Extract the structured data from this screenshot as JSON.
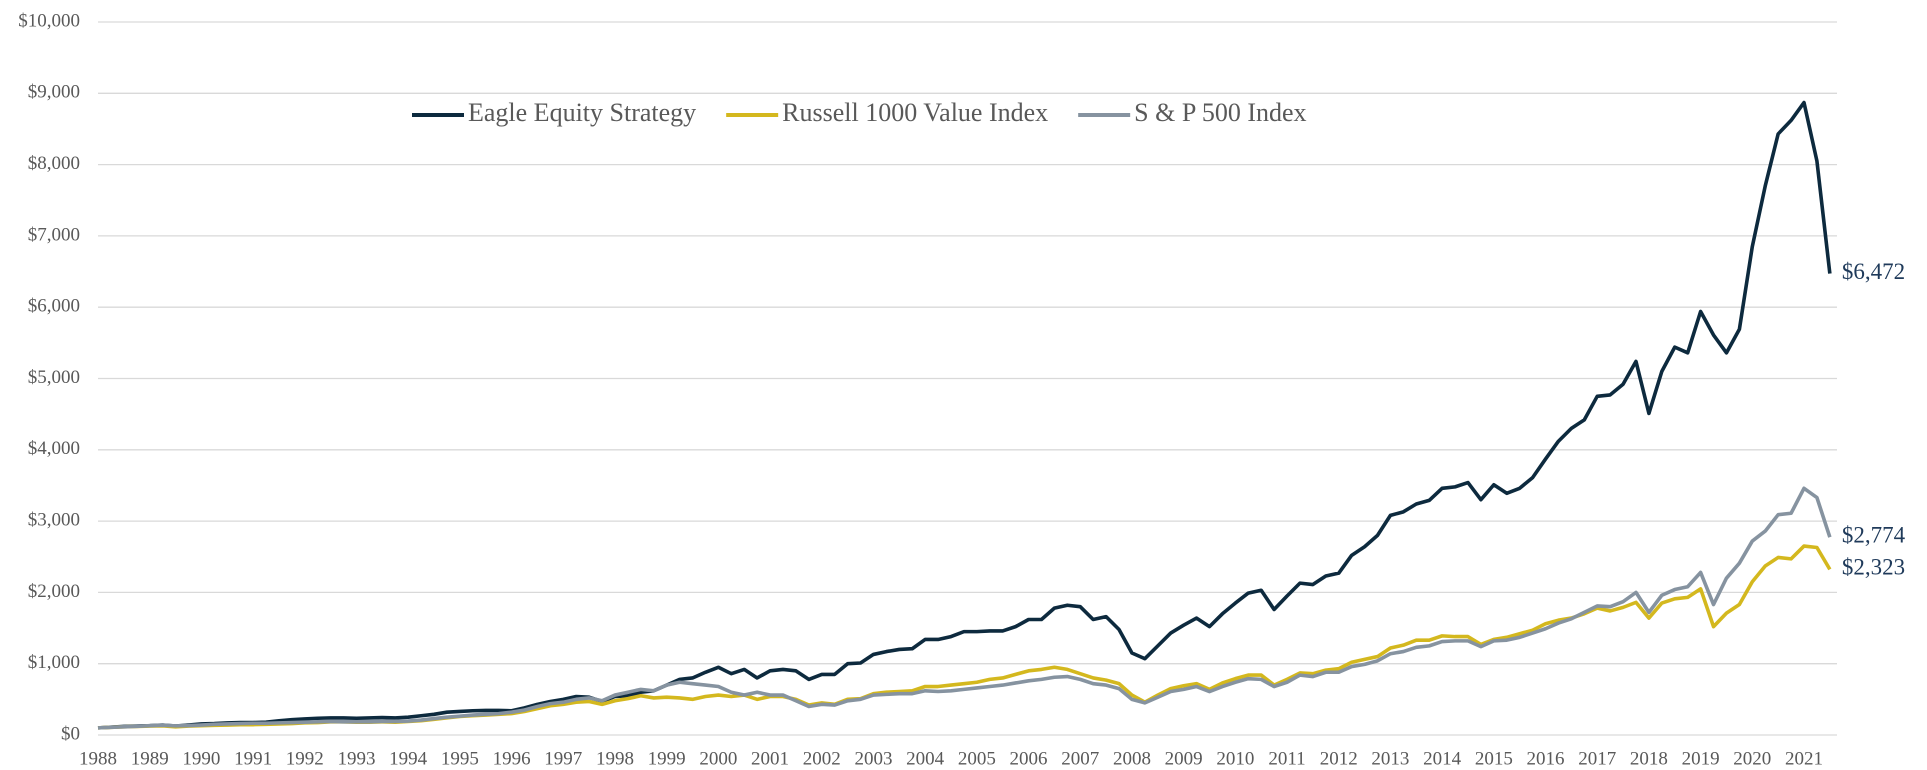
{
  "chart_data": {
    "type": "line",
    "categories": [
      "1988",
      null,
      null,
      null,
      "1989",
      null,
      null,
      null,
      "1990",
      null,
      null,
      null,
      "1991",
      null,
      null,
      null,
      "1992",
      null,
      null,
      null,
      "1993",
      null,
      null,
      null,
      "1994",
      null,
      null,
      null,
      "1995",
      null,
      null,
      null,
      "1996",
      null,
      null,
      null,
      "1997",
      null,
      null,
      null,
      "1998",
      null,
      null,
      null,
      "1999",
      null,
      null,
      null,
      "2000",
      null,
      null,
      null,
      "2001",
      null,
      null,
      null,
      "2002",
      null,
      null,
      null,
      "2003",
      null,
      null,
      null,
      "2004",
      null,
      null,
      null,
      "2005",
      null,
      null,
      null,
      "2006",
      null,
      null,
      null,
      "2007",
      null,
      null,
      null,
      "2008",
      null,
      null,
      null,
      "2009",
      null,
      null,
      null,
      "2010",
      null,
      null,
      null,
      "2011",
      null,
      null,
      null,
      "2012",
      null,
      null,
      null,
      "2013",
      null,
      null,
      null,
      "2014",
      null,
      null,
      null,
      "2015",
      null,
      null,
      null,
      "2016",
      null,
      null,
      null,
      "2017",
      null,
      null,
      null,
      "2018",
      null,
      null,
      null,
      "2019",
      null,
      null,
      null,
      "2020",
      null,
      null,
      null,
      "2021",
      null,
      null
    ],
    "series": [
      {
        "name": "Eagle Equity Strategy",
        "color": "#0d2a3e",
        "values": [
          100,
          110,
          120,
          125,
          130,
          140,
          125,
          140,
          155,
          160,
          170,
          175,
          175,
          180,
          200,
          215,
          225,
          235,
          240,
          240,
          235,
          240,
          245,
          240,
          250,
          270,
          290,
          320,
          330,
          340,
          345,
          345,
          340,
          380,
          430,
          470,
          500,
          540,
          530,
          470,
          540,
          550,
          600,
          620,
          700,
          780,
          800,
          880,
          950,
          860,
          920,
          800,
          900,
          920,
          900,
          780,
          850,
          850,
          1000,
          1010,
          1130,
          1170,
          1200,
          1210,
          1340,
          1340,
          1380,
          1450,
          1450,
          1460,
          1460,
          1520,
          1620,
          1620,
          1780,
          1820,
          1800,
          1620,
          1660,
          1480,
          1150,
          1070,
          1250,
          1430,
          1540,
          1640,
          1520,
          1700,
          1850,
          1990,
          2030,
          1760,
          1950,
          2130,
          2110,
          2230,
          2270,
          2520,
          2640,
          2800,
          3080,
          3130,
          3240,
          3290,
          3460,
          3480,
          3540,
          3300,
          3510,
          3390,
          3460,
          3610,
          3870,
          4120,
          4300,
          4420,
          4750,
          4770,
          4920,
          5240,
          4510,
          5100,
          5440,
          5360,
          5940,
          5610,
          5360,
          5690,
          6850,
          7700,
          8430,
          8620,
          8870,
          8050,
          6472
        ],
        "value_labels": [
          null,
          null,
          null,
          null,
          null,
          null,
          null,
          null,
          null,
          null,
          null,
          null,
          null,
          null,
          null,
          null,
          null,
          null,
          null,
          null,
          null,
          null,
          null,
          null,
          null,
          null,
          null,
          null,
          null,
          null,
          null,
          null,
          null,
          null,
          null,
          null,
          null,
          null,
          null,
          null,
          null,
          null,
          null,
          null,
          null,
          null,
          null,
          null,
          null,
          null,
          null,
          null,
          null,
          null,
          null,
          null,
          null,
          null,
          null,
          null,
          null,
          null,
          null,
          null,
          null,
          null,
          null,
          null,
          null,
          null,
          null,
          null,
          null,
          null,
          null,
          null,
          null,
          null,
          null,
          null,
          null,
          null,
          null,
          null,
          null,
          null,
          null,
          null,
          null,
          null,
          null,
          null,
          null,
          null,
          null,
          null,
          null,
          null,
          null,
          null,
          null,
          null,
          null,
          null,
          null,
          null,
          null,
          null,
          null,
          null,
          null,
          null,
          null,
          null,
          null,
          null,
          null,
          null,
          null,
          null,
          null,
          null,
          null,
          null,
          null,
          null,
          null,
          null,
          null,
          null,
          null,
          null,
          null,
          null,
          "$6,472"
        ]
      },
      {
        "name": "Russell 1000 Value Index",
        "color": "#d4b81e",
        "values": [
          100,
          108,
          115,
          120,
          125,
          128,
          115,
          125,
          130,
          135,
          140,
          145,
          145,
          150,
          155,
          160,
          170,
          175,
          185,
          185,
          180,
          180,
          185,
          180,
          190,
          200,
          220,
          240,
          260,
          270,
          280,
          290,
          300,
          330,
          370,
          410,
          430,
          460,
          470,
          430,
          480,
          510,
          550,
          520,
          530,
          520,
          500,
          540,
          560,
          540,
          560,
          500,
          540,
          540,
          500,
          420,
          450,
          430,
          500,
          510,
          580,
          600,
          610,
          620,
          680,
          680,
          700,
          720,
          740,
          780,
          800,
          850,
          900,
          920,
          950,
          920,
          860,
          800,
          770,
          720,
          560,
          460,
          560,
          650,
          690,
          720,
          640,
          730,
          790,
          840,
          840,
          700,
          780,
          870,
          860,
          910,
          930,
          1020,
          1060,
          1100,
          1220,
          1260,
          1330,
          1330,
          1390,
          1380,
          1380,
          1270,
          1340,
          1370,
          1420,
          1470,
          1560,
          1610,
          1640,
          1700,
          1780,
          1740,
          1790,
          1860,
          1640,
          1850,
          1910,
          1930,
          2050,
          1520,
          1710,
          1830,
          2150,
          2370,
          2490,
          2470,
          2650,
          2630,
          2323
        ],
        "value_labels": [
          null,
          null,
          null,
          null,
          null,
          null,
          null,
          null,
          null,
          null,
          null,
          null,
          null,
          null,
          null,
          null,
          null,
          null,
          null,
          null,
          null,
          null,
          null,
          null,
          null,
          null,
          null,
          null,
          null,
          null,
          null,
          null,
          null,
          null,
          null,
          null,
          null,
          null,
          null,
          null,
          null,
          null,
          null,
          null,
          null,
          null,
          null,
          null,
          null,
          null,
          null,
          null,
          null,
          null,
          null,
          null,
          null,
          null,
          null,
          null,
          null,
          null,
          null,
          null,
          null,
          null,
          null,
          null,
          null,
          null,
          null,
          null,
          null,
          null,
          null,
          null,
          null,
          null,
          null,
          null,
          null,
          null,
          null,
          null,
          null,
          null,
          null,
          null,
          null,
          null,
          null,
          null,
          null,
          null,
          null,
          null,
          null,
          null,
          null,
          null,
          null,
          null,
          null,
          null,
          null,
          null,
          null,
          null,
          null,
          null,
          null,
          null,
          null,
          null,
          null,
          null,
          null,
          null,
          null,
          null,
          null,
          null,
          null,
          null,
          null,
          null,
          null,
          null,
          null,
          null,
          null,
          null,
          null,
          null,
          "$2,323"
        ]
      },
      {
        "name": "S & P 500 Index",
        "color": "#8693a0",
        "values": [
          100,
          108,
          115,
          122,
          130,
          138,
          128,
          132,
          140,
          150,
          155,
          160,
          165,
          165,
          170,
          175,
          180,
          185,
          190,
          185,
          185,
          185,
          190,
          190,
          195,
          210,
          230,
          250,
          265,
          280,
          290,
          300,
          320,
          350,
          400,
          440,
          460,
          500,
          520,
          480,
          560,
          600,
          640,
          620,
          700,
          740,
          720,
          700,
          680,
          600,
          560,
          600,
          560,
          560,
          480,
          400,
          430,
          420,
          480,
          500,
          560,
          570,
          580,
          580,
          620,
          610,
          620,
          640,
          660,
          680,
          700,
          730,
          760,
          780,
          810,
          820,
          780,
          720,
          700,
          650,
          500,
          450,
          530,
          610,
          640,
          680,
          610,
          680,
          740,
          790,
          780,
          680,
          740,
          840,
          820,
          880,
          880,
          960,
          990,
          1040,
          1140,
          1170,
          1230,
          1250,
          1310,
          1320,
          1320,
          1240,
          1320,
          1330,
          1370,
          1430,
          1490,
          1570,
          1630,
          1720,
          1810,
          1800,
          1870,
          2000,
          1720,
          1960,
          2040,
          2080,
          2280,
          1830,
          2200,
          2410,
          2720,
          2860,
          3090,
          3110,
          3460,
          3330,
          2774
        ],
        "value_labels": [
          null,
          null,
          null,
          null,
          null,
          null,
          null,
          null,
          null,
          null,
          null,
          null,
          null,
          null,
          null,
          null,
          null,
          null,
          null,
          null,
          null,
          null,
          null,
          null,
          null,
          null,
          null,
          null,
          null,
          null,
          null,
          null,
          null,
          null,
          null,
          null,
          null,
          null,
          null,
          null,
          null,
          null,
          null,
          null,
          null,
          null,
          null,
          null,
          null,
          null,
          null,
          null,
          null,
          null,
          null,
          null,
          null,
          null,
          null,
          null,
          null,
          null,
          null,
          null,
          null,
          null,
          null,
          null,
          null,
          null,
          null,
          null,
          null,
          null,
          null,
          null,
          null,
          null,
          null,
          null,
          null,
          null,
          null,
          null,
          null,
          null,
          null,
          null,
          null,
          null,
          null,
          null,
          null,
          null,
          null,
          null,
          null,
          null,
          null,
          null,
          null,
          null,
          null,
          null,
          null,
          null,
          null,
          null,
          null,
          null,
          null,
          null,
          null,
          null,
          null,
          null,
          null,
          null,
          null,
          null,
          null,
          null,
          null,
          null,
          null,
          null,
          null,
          null,
          null,
          null,
          null,
          null,
          null,
          null,
          "$2,774"
        ]
      }
    ],
    "ylim": [
      0,
      10000
    ],
    "yticks": [
      {
        "value": 0,
        "label": "$0"
      },
      {
        "value": 1000,
        "label": "$1,000"
      },
      {
        "value": 2000,
        "label": "$2,000"
      },
      {
        "value": 3000,
        "label": "$3,000"
      },
      {
        "value": 4000,
        "label": "$4,000"
      },
      {
        "value": 5000,
        "label": "$5,000"
      },
      {
        "value": 6000,
        "label": "$6,000"
      },
      {
        "value": 7000,
        "label": "$7,000"
      },
      {
        "value": 8000,
        "label": "$8,000"
      },
      {
        "value": 9000,
        "label": "$9,000"
      },
      {
        "value": 10000,
        "label": "$10,000"
      }
    ],
    "grid": true,
    "legend": "top"
  }
}
